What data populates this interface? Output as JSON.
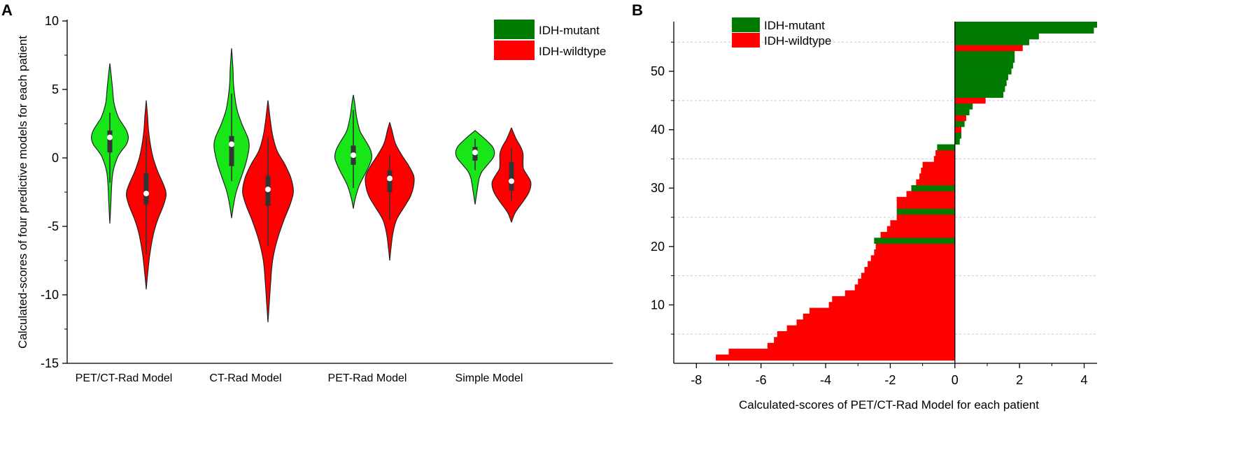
{
  "chart_data": [
    {
      "panel": "A",
      "type": "violin",
      "ylabel": "Calculated-scores of four predictive models for each patient",
      "xlabel": "",
      "ylim": [
        -15,
        10
      ],
      "yticks": [
        10,
        5,
        0,
        -5,
        -10,
        -15
      ],
      "ytick_labels": [
        "10",
        "5",
        "0",
        "-5",
        "-10",
        "-15"
      ],
      "categories": [
        "PET/CT-Rad Model",
        "CT-Rad Model",
        "PET-Rad Model",
        "Simple Model"
      ],
      "legend": {
        "position": "top-right",
        "entries": [
          {
            "label": "IDH-mutant",
            "color": "#007a00"
          },
          {
            "label": "IDH-wildtype",
            "color": "#ff0000"
          }
        ]
      },
      "series": [
        {
          "name": "IDH-mutant",
          "fill_color": "#19e619",
          "violins": [
            {
              "category": "PET/CT-Rad Model",
              "min": -4.8,
              "max": 6.9,
              "median": 1.5,
              "q1": 0.4,
              "q3": 2.0,
              "whisker_low": -1.8,
              "whisker_high": 3.3,
              "profile": [
                [
                  -4.8,
                  0.0
                ],
                [
                  -3.5,
                  0.02
                ],
                [
                  -2.0,
                  0.04
                ],
                [
                  -1.0,
                  0.07
                ],
                [
                  0.0,
                  0.16
                ],
                [
                  0.5,
                  0.25
                ],
                [
                  1.0,
                  0.36
                ],
                [
                  1.5,
                  0.4
                ],
                [
                  2.0,
                  0.36
                ],
                [
                  2.5,
                  0.27
                ],
                [
                  3.0,
                  0.18
                ],
                [
                  4.0,
                  0.09
                ],
                [
                  5.0,
                  0.06
                ],
                [
                  6.0,
                  0.03
                ],
                [
                  6.9,
                  0.0
                ]
              ]
            },
            {
              "category": "CT-Rad Model",
              "min": -4.4,
              "max": 8.0,
              "median": 1.0,
              "q1": -0.6,
              "q3": 1.6,
              "whisker_low": -1.7,
              "whisker_high": 4.7,
              "profile": [
                [
                  -4.4,
                  0.0
                ],
                [
                  -3.5,
                  0.04
                ],
                [
                  -2.5,
                  0.1
                ],
                [
                  -1.5,
                  0.2
                ],
                [
                  -0.5,
                  0.3
                ],
                [
                  0.5,
                  0.37
                ],
                [
                  1.0,
                  0.38
                ],
                [
                  1.5,
                  0.35
                ],
                [
                  2.5,
                  0.22
                ],
                [
                  3.5,
                  0.12
                ],
                [
                  4.5,
                  0.07
                ],
                [
                  5.5,
                  0.04
                ],
                [
                  6.5,
                  0.03
                ],
                [
                  8.0,
                  0.0
                ]
              ]
            },
            {
              "category": "PET-Rad Model",
              "min": -3.7,
              "max": 4.6,
              "median": 0.2,
              "q1": -0.5,
              "q3": 0.9,
              "whisker_low": -2.2,
              "whisker_high": 3.5,
              "profile": [
                [
                  -3.7,
                  0.0
                ],
                [
                  -3.0,
                  0.04
                ],
                [
                  -2.0,
                  0.13
                ],
                [
                  -1.0,
                  0.28
                ],
                [
                  -0.5,
                  0.35
                ],
                [
                  0.0,
                  0.4
                ],
                [
                  0.5,
                  0.38
                ],
                [
                  1.0,
                  0.31
                ],
                [
                  1.5,
                  0.22
                ],
                [
                  2.0,
                  0.14
                ],
                [
                  3.0,
                  0.07
                ],
                [
                  4.0,
                  0.03
                ],
                [
                  4.6,
                  0.0
                ]
              ]
            },
            {
              "category": "Simple Model",
              "min": -3.4,
              "max": 2.0,
              "median": 0.4,
              "q1": -0.2,
              "q3": 0.8,
              "whisker_low": -0.9,
              "whisker_high": 1.4,
              "profile": [
                [
                  -3.4,
                  0.0
                ],
                [
                  -2.5,
                  0.04
                ],
                [
                  -1.5,
                  0.09
                ],
                [
                  -1.0,
                  0.15
                ],
                [
                  -0.5,
                  0.27
                ],
                [
                  0.0,
                  0.39
                ],
                [
                  0.4,
                  0.42
                ],
                [
                  0.8,
                  0.38
                ],
                [
                  1.2,
                  0.27
                ],
                [
                  1.6,
                  0.14
                ],
                [
                  2.0,
                  0.0
                ]
              ]
            }
          ]
        },
        {
          "name": "IDH-wildtype",
          "fill_color": "#ff0000",
          "violins": [
            {
              "category": "PET/CT-Rad Model",
              "min": -9.6,
              "max": 4.2,
              "median": -2.6,
              "q1": -3.4,
              "q3": -1.1,
              "whisker_low": -7.0,
              "whisker_high": 1.6,
              "profile": [
                [
                  -9.6,
                  0.0
                ],
                [
                  -8.5,
                  0.03
                ],
                [
                  -7.0,
                  0.08
                ],
                [
                  -5.5,
                  0.16
                ],
                [
                  -4.5,
                  0.25
                ],
                [
                  -3.5,
                  0.37
                ],
                [
                  -2.7,
                  0.43
                ],
                [
                  -2.0,
                  0.38
                ],
                [
                  -1.0,
                  0.25
                ],
                [
                  0.0,
                  0.15
                ],
                [
                  1.0,
                  0.09
                ],
                [
                  2.0,
                  0.05
                ],
                [
                  3.0,
                  0.03
                ],
                [
                  4.2,
                  0.0
                ]
              ]
            },
            {
              "category": "CT-Rad Model",
              "min": -12.0,
              "max": 4.2,
              "median": -2.3,
              "q1": -3.5,
              "q3": -1.3,
              "whisker_low": -6.4,
              "whisker_high": 1.5,
              "profile": [
                [
                  -12.0,
                  0.0
                ],
                [
                  -10.5,
                  0.03
                ],
                [
                  -9.0,
                  0.06
                ],
                [
                  -7.5,
                  0.1
                ],
                [
                  -6.0,
                  0.2
                ],
                [
                  -4.5,
                  0.35
                ],
                [
                  -3.5,
                  0.47
                ],
                [
                  -2.5,
                  0.55
                ],
                [
                  -1.5,
                  0.5
                ],
                [
                  -0.5,
                  0.37
                ],
                [
                  0.5,
                  0.2
                ],
                [
                  1.5,
                  0.11
                ],
                [
                  2.5,
                  0.06
                ],
                [
                  4.2,
                  0.0
                ]
              ]
            },
            {
              "category": "PET-Rad Model",
              "min": -7.5,
              "max": 2.6,
              "median": -1.5,
              "q1": -2.5,
              "q3": -0.9,
              "whisker_low": -4.5,
              "whisker_high": 0.2,
              "profile": [
                [
                  -7.5,
                  0.0
                ],
                [
                  -6.5,
                  0.03
                ],
                [
                  -5.5,
                  0.07
                ],
                [
                  -4.5,
                  0.15
                ],
                [
                  -3.5,
                  0.33
                ],
                [
                  -2.8,
                  0.45
                ],
                [
                  -2.0,
                  0.52
                ],
                [
                  -1.3,
                  0.52
                ],
                [
                  -0.5,
                  0.4
                ],
                [
                  0.0,
                  0.3
                ],
                [
                  1.0,
                  0.13
                ],
                [
                  2.0,
                  0.05
                ],
                [
                  2.6,
                  0.0
                ]
              ]
            },
            {
              "category": "Simple Model",
              "min": -4.7,
              "max": 2.2,
              "median": -1.7,
              "q1": -2.4,
              "q3": -0.3,
              "whisker_low": -3.1,
              "whisker_high": 0.7,
              "profile": [
                [
                  -4.7,
                  0.0
                ],
                [
                  -4.0,
                  0.08
                ],
                [
                  -3.2,
                  0.25
                ],
                [
                  -2.5,
                  0.38
                ],
                [
                  -1.8,
                  0.42
                ],
                [
                  -1.2,
                  0.33
                ],
                [
                  -0.8,
                  0.26
                ],
                [
                  -0.3,
                  0.25
                ],
                [
                  0.3,
                  0.25
                ],
                [
                  0.8,
                  0.2
                ],
                [
                  1.4,
                  0.1
                ],
                [
                  2.2,
                  0.0
                ]
              ]
            }
          ]
        }
      ]
    },
    {
      "panel": "B",
      "type": "bar",
      "orientation": "horizontal",
      "xlabel": "Calculated-scores of PET/CT-Rad Model for each patient",
      "ylabel": "",
      "xlim": [
        -8.7,
        4.4
      ],
      "ylim": [
        0,
        58.5
      ],
      "xticks": [
        -8,
        -6,
        -4,
        -2,
        0,
        2,
        4
      ],
      "xtick_labels": [
        "-8",
        "-6",
        "-4",
        "-2",
        "0",
        "2",
        "4"
      ],
      "yticks": [
        10,
        20,
        30,
        40,
        50
      ],
      "ytick_labels": [
        "10",
        "20",
        "30",
        "40",
        "50"
      ],
      "grid_y": [
        5,
        15,
        25,
        35,
        45,
        55
      ],
      "legend": {
        "position": "top-left",
        "entries": [
          {
            "label": "IDH-mutant",
            "color": "#007a00"
          },
          {
            "label": "IDH-wildtype",
            "color": "#ff0000"
          }
        ]
      },
      "patients": [
        {
          "index": 1,
          "score": -7.4,
          "group": "IDH-wildtype"
        },
        {
          "index": 2,
          "score": -7.0,
          "group": "IDH-wildtype"
        },
        {
          "index": 3,
          "score": -5.8,
          "group": "IDH-wildtype"
        },
        {
          "index": 4,
          "score": -5.6,
          "group": "IDH-wildtype"
        },
        {
          "index": 5,
          "score": -5.5,
          "group": "IDH-wildtype"
        },
        {
          "index": 6,
          "score": -5.2,
          "group": "IDH-wildtype"
        },
        {
          "index": 7,
          "score": -4.9,
          "group": "IDH-wildtype"
        },
        {
          "index": 8,
          "score": -4.7,
          "group": "IDH-wildtype"
        },
        {
          "index": 9,
          "score": -4.5,
          "group": "IDH-wildtype"
        },
        {
          "index": 10,
          "score": -3.9,
          "group": "IDH-wildtype"
        },
        {
          "index": 11,
          "score": -3.8,
          "group": "IDH-wildtype"
        },
        {
          "index": 12,
          "score": -3.4,
          "group": "IDH-wildtype"
        },
        {
          "index": 13,
          "score": -3.1,
          "group": "IDH-wildtype"
        },
        {
          "index": 14,
          "score": -3.0,
          "group": "IDH-wildtype"
        },
        {
          "index": 15,
          "score": -2.9,
          "group": "IDH-wildtype"
        },
        {
          "index": 16,
          "score": -2.8,
          "group": "IDH-wildtype"
        },
        {
          "index": 17,
          "score": -2.7,
          "group": "IDH-wildtype"
        },
        {
          "index": 18,
          "score": -2.6,
          "group": "IDH-wildtype"
        },
        {
          "index": 19,
          "score": -2.5,
          "group": "IDH-wildtype"
        },
        {
          "index": 20,
          "score": -2.45,
          "group": "IDH-wildtype"
        },
        {
          "index": 21,
          "score": -2.5,
          "group": "IDH-mutant"
        },
        {
          "index": 22,
          "score": -2.3,
          "group": "IDH-wildtype"
        },
        {
          "index": 23,
          "score": -2.1,
          "group": "IDH-wildtype"
        },
        {
          "index": 24,
          "score": -2.0,
          "group": "IDH-wildtype"
        },
        {
          "index": 25,
          "score": -1.8,
          "group": "IDH-wildtype"
        },
        {
          "index": 26,
          "score": -1.8,
          "group": "IDH-mutant"
        },
        {
          "index": 27,
          "score": -1.8,
          "group": "IDH-wildtype"
        },
        {
          "index": 28,
          "score": -1.8,
          "group": "IDH-wildtype"
        },
        {
          "index": 29,
          "score": -1.5,
          "group": "IDH-wildtype"
        },
        {
          "index": 30,
          "score": -1.35,
          "group": "IDH-mutant"
        },
        {
          "index": 31,
          "score": -1.2,
          "group": "IDH-wildtype"
        },
        {
          "index": 32,
          "score": -1.1,
          "group": "IDH-wildtype"
        },
        {
          "index": 33,
          "score": -1.05,
          "group": "IDH-wildtype"
        },
        {
          "index": 34,
          "score": -1.0,
          "group": "IDH-wildtype"
        },
        {
          "index": 35,
          "score": -0.65,
          "group": "IDH-wildtype"
        },
        {
          "index": 36,
          "score": -0.6,
          "group": "IDH-wildtype"
        },
        {
          "index": 37,
          "score": -0.55,
          "group": "IDH-mutant"
        },
        {
          "index": 38,
          "score": 0.15,
          "group": "IDH-mutant"
        },
        {
          "index": 39,
          "score": 0.2,
          "group": "IDH-mutant"
        },
        {
          "index": 40,
          "score": 0.2,
          "group": "IDH-wildtype"
        },
        {
          "index": 41,
          "score": 0.3,
          "group": "IDH-mutant"
        },
        {
          "index": 42,
          "score": 0.35,
          "group": "IDH-wildtype"
        },
        {
          "index": 43,
          "score": 0.45,
          "group": "IDH-mutant"
        },
        {
          "index": 44,
          "score": 0.55,
          "group": "IDH-mutant"
        },
        {
          "index": 45,
          "score": 0.95,
          "group": "IDH-wildtype"
        },
        {
          "index": 46,
          "score": 1.5,
          "group": "IDH-mutant"
        },
        {
          "index": 47,
          "score": 1.55,
          "group": "IDH-mutant"
        },
        {
          "index": 48,
          "score": 1.6,
          "group": "IDH-mutant"
        },
        {
          "index": 49,
          "score": 1.65,
          "group": "IDH-mutant"
        },
        {
          "index": 50,
          "score": 1.75,
          "group": "IDH-mutant"
        },
        {
          "index": 51,
          "score": 1.8,
          "group": "IDH-mutant"
        },
        {
          "index": 52,
          "score": 1.85,
          "group": "IDH-mutant"
        },
        {
          "index": 53,
          "score": 1.85,
          "group": "IDH-mutant"
        },
        {
          "index": 54,
          "score": 2.1,
          "group": "IDH-wildtype"
        },
        {
          "index": 55,
          "score": 2.3,
          "group": "IDH-mutant"
        },
        {
          "index": 56,
          "score": 2.6,
          "group": "IDH-mutant"
        },
        {
          "index": 57,
          "score": 4.3,
          "group": "IDH-mutant"
        },
        {
          "index": 58,
          "score": 4.4,
          "group": "IDH-mutant"
        }
      ]
    }
  ],
  "colors": {
    "mutant_violin": "#19e619",
    "mutant_bar": "#007a00",
    "wildtype": "#ff0000",
    "outline": "#222222",
    "box": "#333333",
    "median_dot": "#ffffff",
    "grid": "#c8c8c8"
  }
}
